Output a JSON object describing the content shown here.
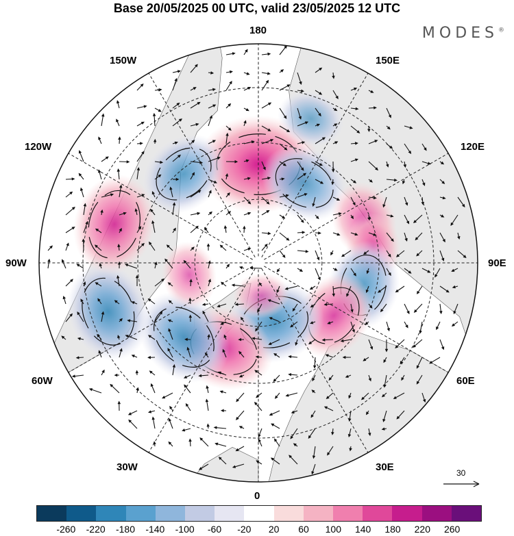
{
  "title": "Base 20/05/2025 00 UTC, valid 23/05/2025 12 UTC",
  "brand": {
    "name": "MODES",
    "mark": "®"
  },
  "map": {
    "projection": "north-polar-stereographic",
    "longitude_labels": {
      "top": "180",
      "bottom": "0",
      "left": "90W",
      "right": "90E",
      "upper_left": "150W",
      "upper_left_2": "120W",
      "lower_left": "60W",
      "lower_left_2": "30W",
      "upper_right": "150E",
      "upper_right_2": "120E",
      "lower_right": "60E",
      "lower_right_2": "30E"
    },
    "colors": {
      "land": "#e8e8e8",
      "ocean": "#ffffff",
      "grid": "#222222",
      "arrows": "#111111"
    },
    "anomalies": [
      {
        "lon": 180,
        "r": 0.45,
        "value": 260
      },
      {
        "lon": 160,
        "r": 0.7,
        "value": -60
      },
      {
        "lon": 150,
        "r": 0.42,
        "value": -140
      },
      {
        "lon": 112,
        "r": 0.52,
        "value": 100
      },
      {
        "lon": 98,
        "r": 0.53,
        "value": 60
      },
      {
        "lon": 78,
        "r": 0.49,
        "value": -140
      },
      {
        "lon": 55,
        "r": 0.42,
        "value": 140
      },
      {
        "lon": 15,
        "r": 0.28,
        "value": -180
      },
      {
        "lon": 5,
        "r": 0.15,
        "value": 20
      },
      {
        "lon": -22,
        "r": 0.42,
        "value": 180
      },
      {
        "lon": -45,
        "r": 0.48,
        "value": -180
      },
      {
        "lon": -72,
        "r": 0.72,
        "value": -180
      },
      {
        "lon": -105,
        "r": 0.68,
        "value": 180
      },
      {
        "lon": -140,
        "r": 0.53,
        "value": -140
      },
      {
        "lon": -80,
        "r": 0.32,
        "value": 60
      }
    ]
  },
  "reference_vector": {
    "label": "30"
  },
  "colorbar": {
    "colors": [
      "#0b3a5c",
      "#0f5a8a",
      "#2f86b8",
      "#5aa1cf",
      "#8fb6dc",
      "#c2cbe4",
      "#e6e6f2",
      "#ffffff",
      "#f9dcdc",
      "#f5b3c3",
      "#f07fae",
      "#e0489a",
      "#c61d8d",
      "#9b0f80",
      "#6a0f7a"
    ],
    "ticks": [
      "-260",
      "-220",
      "-180",
      "-140",
      "-100",
      "-60",
      "-20",
      "20",
      "60",
      "100",
      "140",
      "180",
      "220",
      "260"
    ]
  }
}
